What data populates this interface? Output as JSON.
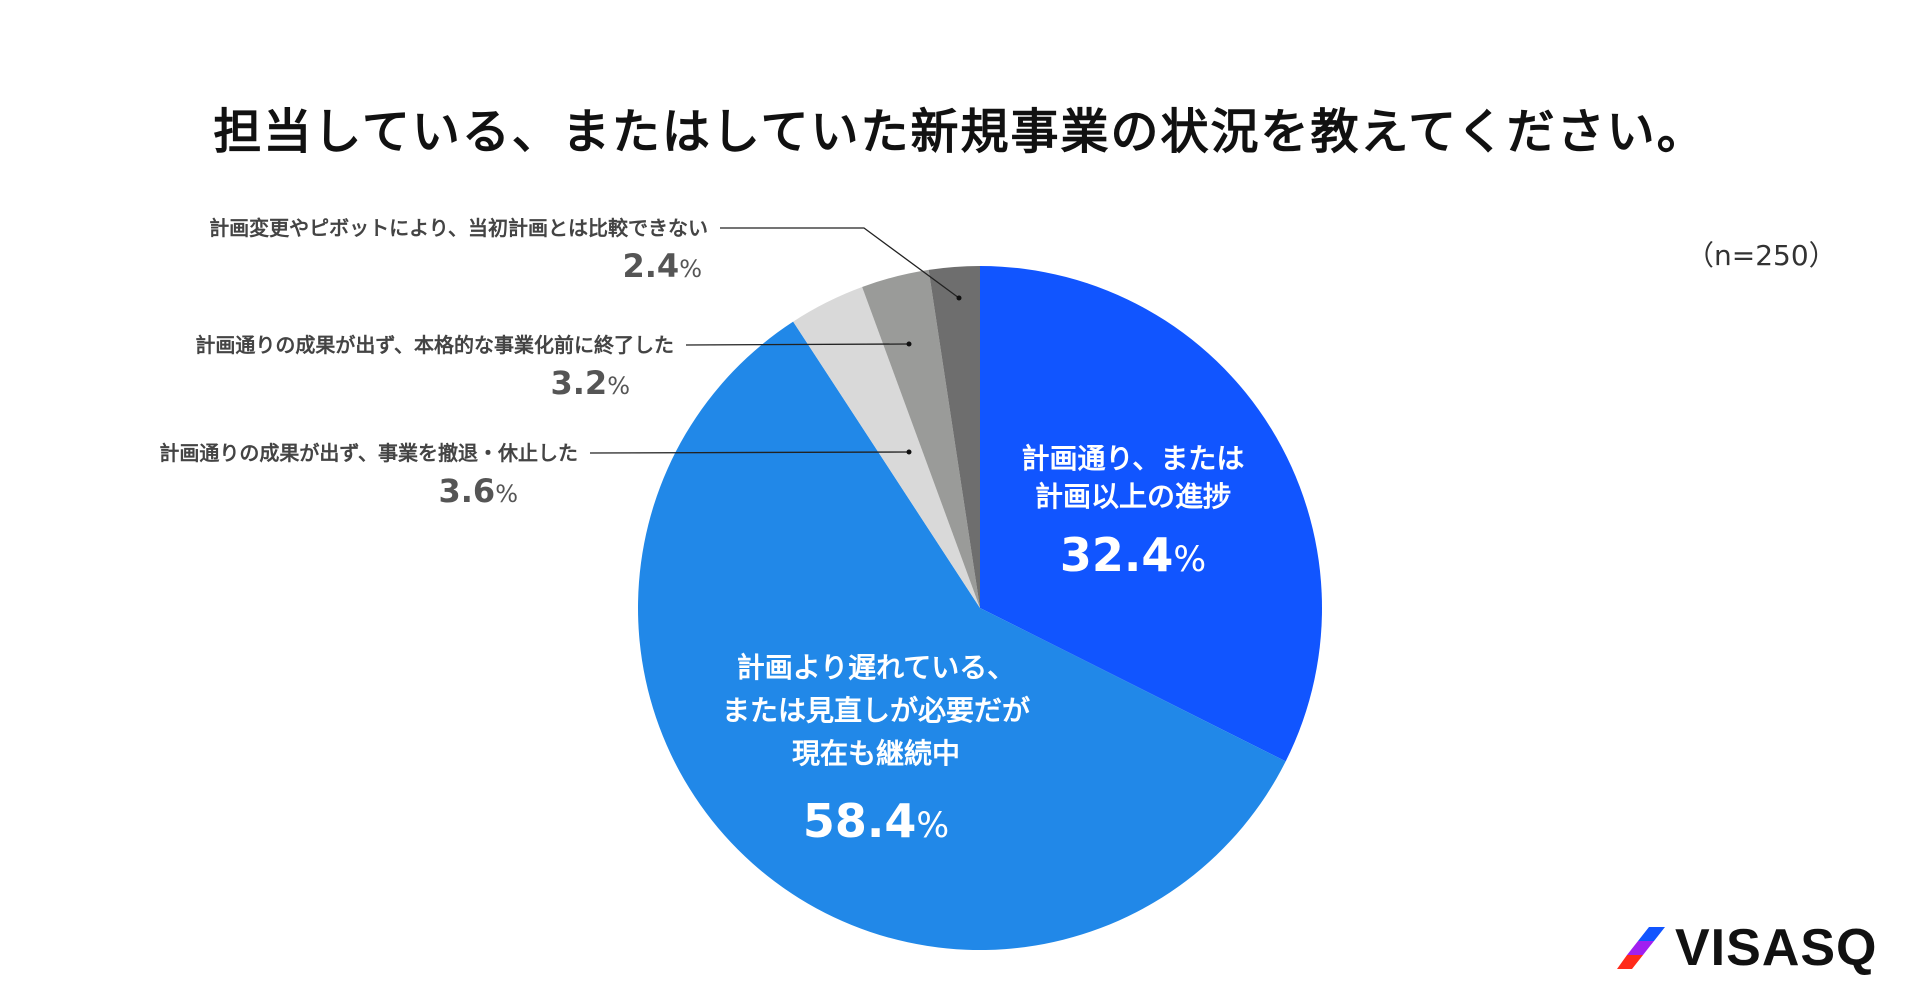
{
  "chart_data": {
    "type": "pie",
    "title": "担当している、またはしていた新規事業の状況を教えてください。",
    "note": "（n=250）",
    "slices": [
      {
        "label": "計画通り、または計画以上の進捗",
        "label_lines": [
          "計画通り、または",
          "計画以上の進捗"
        ],
        "value": 32.4,
        "value_text": "32.4",
        "color": "#1155FF",
        "placement": "inside"
      },
      {
        "label": "計画より遅れている、または見直しが必要だが現在も継続中",
        "label_lines": [
          "計画より遅れている、",
          "または見直しが必要だが",
          "現在も継続中"
        ],
        "value": 58.4,
        "value_text": "58.4",
        "color": "#2188E8",
        "placement": "inside"
      },
      {
        "label": "計画通りの成果が出ず、事業を撤退・休止した",
        "label_lines": [
          "計画通りの成果が出ず、事業を撤退・休止した"
        ],
        "value": 3.6,
        "value_text": "3.6",
        "color": "#D9D9D9",
        "placement": "outside"
      },
      {
        "label": "計画通りの成果が出ず、本格的な事業化前に終了した",
        "label_lines": [
          "計画通りの成果が出ず、本格的な事業化前に終了した"
        ],
        "value": 3.2,
        "value_text": "3.2",
        "color": "#9A9B99",
        "placement": "outside"
      },
      {
        "label": "計画変更やピボットにより、当初計画とは比較できない",
        "label_lines": [
          "計画変更やピボットにより、当初計画とは比較できない"
        ],
        "value": 2.4,
        "value_text": "2.4",
        "color": "#6E6E6E",
        "placement": "outside"
      }
    ],
    "percent_sign": "%",
    "start": "top",
    "direction": "clockwise"
  },
  "logo": {
    "text": "VISASQ",
    "colors": [
      "#1155FF",
      "#A020F0",
      "#FF2A1A"
    ]
  }
}
